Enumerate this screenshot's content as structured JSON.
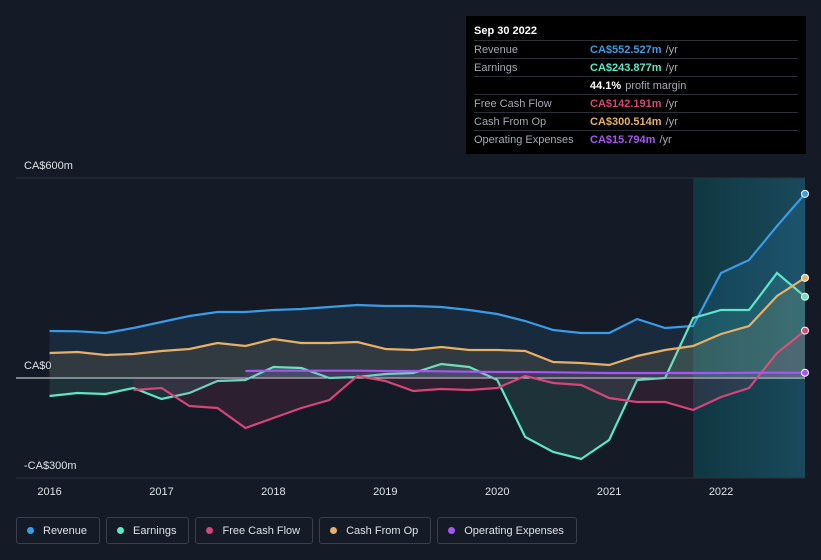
{
  "chart_data": {
    "type": "line",
    "x": [
      2016,
      2016.25,
      2016.5,
      2016.75,
      2017,
      2017.25,
      2017.5,
      2017.75,
      2018,
      2018.25,
      2018.5,
      2018.75,
      2019,
      2019.25,
      2019.5,
      2019.75,
      2020,
      2020.25,
      2020.5,
      2020.75,
      2021,
      2021.25,
      2021.5,
      2021.75,
      2022,
      2022.25,
      2022.5,
      2022.75
    ],
    "series": [
      {
        "name": "Revenue",
        "color": "#3a9be6",
        "values": [
          141,
          140,
          135,
          150,
          168,
          186,
          198,
          198,
          204,
          207,
          213,
          219,
          216,
          216,
          213,
          204,
          192,
          171,
          144,
          135,
          135,
          177,
          150,
          156,
          315,
          354,
          456,
          552.527
        ]
      },
      {
        "name": "Earnings",
        "color": "#5ee6c8",
        "values": [
          -54,
          -45,
          -48,
          -30,
          -63,
          -45,
          -9,
          -6,
          33,
          30,
          0,
          3,
          12,
          15,
          42,
          33,
          -6,
          -177,
          -222,
          -243,
          -186,
          -6,
          0,
          180,
          204,
          204,
          315,
          243.877
        ]
      },
      {
        "name": "Free Cash Flow",
        "color": "#d6457a",
        "values": [
          null,
          null,
          null,
          -36,
          -30,
          -84,
          -90,
          -150,
          -120,
          -90,
          -66,
          6,
          -9,
          -39,
          -33,
          -36,
          -30,
          6,
          -15,
          -21,
          -60,
          -72,
          -72,
          -96,
          -57,
          -30,
          75,
          142.191
        ]
      },
      {
        "name": "Cash From Op",
        "color": "#e8b066",
        "values": [
          75,
          78,
          69,
          72,
          81,
          87,
          105,
          96,
          117,
          105,
          105,
          108,
          87,
          84,
          93,
          84,
          84,
          81,
          48,
          45,
          39,
          66,
          84,
          96,
          132,
          156,
          246,
          300.514
        ]
      },
      {
        "name": "Operating Expenses",
        "color": "#a855f7",
        "values": [
          null,
          null,
          null,
          null,
          null,
          null,
          null,
          21,
          22,
          22,
          22,
          22,
          21,
          21,
          20,
          19,
          18,
          18,
          17,
          16,
          15,
          15,
          15,
          15,
          15,
          16,
          16,
          15.794
        ]
      }
    ],
    "xlim": [
      2015.7,
      2022.75
    ],
    "xticks": [
      2016,
      2017,
      2018,
      2019,
      2020,
      2021,
      2022
    ],
    "ylim": [
      -300,
      600
    ],
    "yticks": [
      {
        "value": 600,
        "label": "CA$600m"
      },
      {
        "value": 0,
        "label": "CA$0"
      },
      {
        "value": -300,
        "label": "-CA$300m"
      }
    ],
    "grid": true,
    "highlight_x": [
      2021.75,
      2022.75
    ],
    "tooltip": {
      "title": "Sep 30 2022",
      "rows": [
        {
          "label": "Revenue",
          "value": "CA$552.527m",
          "unit": "/yr"
        },
        {
          "label": "Earnings",
          "value": "CA$243.877m",
          "unit": "/yr"
        },
        {
          "value": "44.1%",
          "unit": "profit margin"
        },
        {
          "label": "Free Cash Flow",
          "value": "CA$142.191m",
          "unit": "/yr"
        },
        {
          "label": "Cash From Op",
          "value": "CA$300.514m",
          "unit": "/yr"
        },
        {
          "label": "Operating Expenses",
          "value": "CA$15.794m",
          "unit": "/yr"
        }
      ]
    }
  }
}
